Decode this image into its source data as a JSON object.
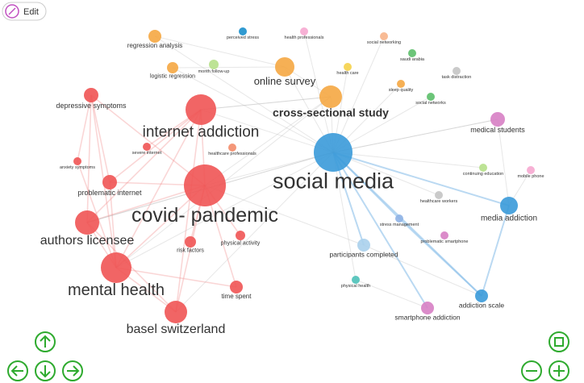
{
  "toolbar": {
    "edit": "Edit"
  },
  "nodes": [
    {
      "label": "regression analysis"
    },
    {
      "label": "perceived stress"
    },
    {
      "label": "health professionals"
    },
    {
      "label": "social networking"
    },
    {
      "label": "logistic regression"
    },
    {
      "label": "month follow-up"
    },
    {
      "label": "online survey"
    },
    {
      "label": "health care"
    },
    {
      "label": "saudi arabia"
    },
    {
      "label": "sleep quality"
    },
    {
      "label": "task distraction"
    },
    {
      "label": "social networks"
    },
    {
      "label": "cross-sectional study"
    },
    {
      "label": "depressive symptoms"
    },
    {
      "label": "internet addiction"
    },
    {
      "label": "medical students"
    },
    {
      "label": "severe internet"
    },
    {
      "label": "healthcare professionals"
    },
    {
      "label": "social media"
    },
    {
      "label": "anxiety symptoms"
    },
    {
      "label": "continuing education"
    },
    {
      "label": "mobile phone"
    },
    {
      "label": "problematic internet"
    },
    {
      "label": "covid- pandemic"
    },
    {
      "label": "healthcare workers"
    },
    {
      "label": "media addiction"
    },
    {
      "label": "stress management"
    },
    {
      "label": "problematic smartphone"
    },
    {
      "label": "authors licensee"
    },
    {
      "label": "physical activity"
    },
    {
      "label": "risk factors"
    },
    {
      "label": "participants completed"
    },
    {
      "label": "mental health"
    },
    {
      "label": "physical health"
    },
    {
      "label": "time spent"
    },
    {
      "label": "addiction scale"
    },
    {
      "label": "basel switzerland"
    },
    {
      "label": "smartphone addiction"
    }
  ]
}
